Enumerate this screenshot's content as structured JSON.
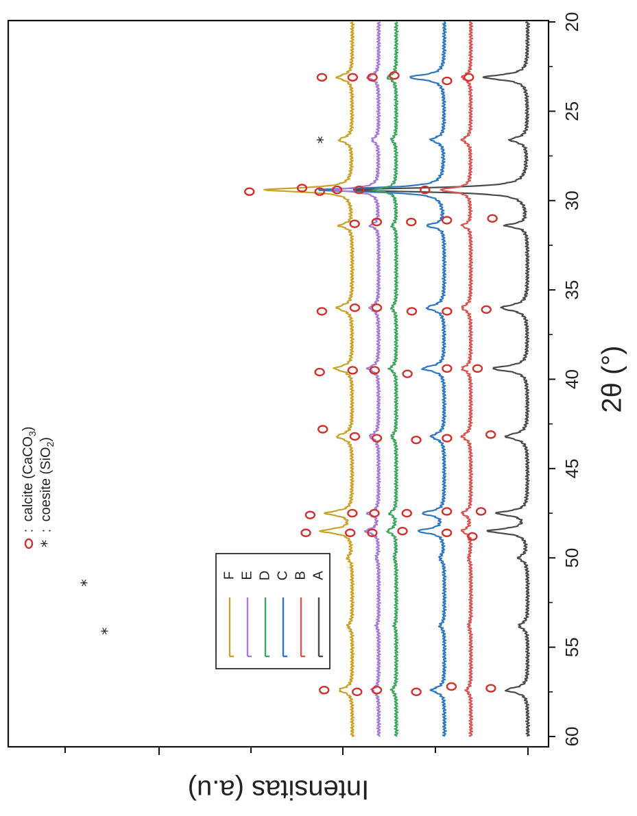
{
  "chart_data": {
    "type": "line",
    "title": "",
    "xlabel": "2θ (°)",
    "ylabel": "Intensitas (a.u)",
    "xlim": [
      20,
      60
    ],
    "x_ticks": [
      "20",
      "25",
      "30",
      "35",
      "40",
      "45",
      "50",
      "55",
      "60"
    ],
    "y_ticks_labeled": false,
    "orientation": "rotated 90° clockwise (x axis runs top-to-bottom on the right edge)",
    "grid": false,
    "legend": {
      "placement": "bottom-left",
      "entries": [
        "F",
        "E",
        "D",
        "C",
        "B",
        "A"
      ]
    },
    "phase_legend": [
      {
        "symbol": "o",
        "separator": ":",
        "label_prefix": "calcite (CaCO",
        "label_sub": "3",
        "label_suffix": ")"
      },
      {
        "symbol": "*",
        "separator": ":",
        "label_prefix": "coesite (SiO",
        "label_sub": "2",
        "label_suffix": ")"
      }
    ],
    "series": [
      {
        "name": "A",
        "color": "#4a4a4a",
        "offset": 0,
        "peak_heights": [
          10,
          4,
          40,
          5,
          6,
          8,
          5,
          7,
          9,
          2,
          2,
          5
        ]
      },
      {
        "name": "B",
        "color": "#d9534f",
        "offset": 13,
        "peak_heights": [
          2,
          2,
          7,
          2,
          2,
          2,
          2,
          2,
          2,
          0.5,
          0.5,
          1
        ]
      },
      {
        "name": "C",
        "color": "#2f76c2",
        "offset": 19,
        "peak_heights": [
          8,
          3,
          29,
          4,
          4,
          5,
          3,
          5,
          6,
          1,
          1,
          3
        ]
      },
      {
        "name": "D",
        "color": "#3ea55f",
        "offset": 30,
        "peak_heights": [
          2,
          1,
          5,
          1,
          1,
          1.5,
          1,
          1.5,
          2,
          0.4,
          0.4,
          1
        ]
      },
      {
        "name": "E",
        "color": "#a77ad6",
        "offset": 34,
        "peak_heights": [
          2.5,
          1.5,
          10,
          2,
          2,
          2.5,
          2,
          2.5,
          3,
          0.5,
          0.5,
          1.5
        ]
      },
      {
        "name": "F",
        "color": "#c9a227",
        "offset": 40,
        "peak_heights": [
          3.5,
          3,
          20,
          3,
          3.5,
          4,
          3.5,
          6,
          7,
          1,
          1,
          3
        ]
      }
    ],
    "calcite_peaks": [
      23.1,
      29.4,
      31.4,
      36.0,
      39.4,
      43.2,
      47.5,
      48.5,
      57.4
    ],
    "coesite_peaks": [
      26.6,
      50.0,
      53.8
    ],
    "annotations": [
      {
        "series": "F",
        "symbol": "o",
        "x": 23.1
      },
      {
        "series": "F",
        "symbol": "*",
        "x": 26.6
      },
      {
        "series": "F",
        "symbol": "o",
        "x": 29.5
      },
      {
        "series": "F",
        "symbol": "o",
        "x": 36.2
      },
      {
        "series": "F",
        "symbol": "o",
        "x": 39.6
      },
      {
        "series": "F",
        "symbol": "o",
        "x": 42.8
      },
      {
        "series": "F",
        "symbol": "o",
        "x": 47.6
      },
      {
        "series": "F",
        "symbol": "o",
        "x": 48.6
      },
      {
        "series": "F",
        "symbol": "o",
        "x": 57.4
      },
      {
        "series": "E",
        "symbol": "o",
        "x": 23.1
      },
      {
        "series": "E",
        "symbol": "o",
        "x": 29.5
      },
      {
        "series": "E",
        "symbol": "o",
        "x": 31.3
      },
      {
        "series": "E",
        "symbol": "o",
        "x": 36.0
      },
      {
        "series": "E",
        "symbol": "o",
        "x": 39.5
      },
      {
        "series": "E",
        "symbol": "o",
        "x": 43.2
      },
      {
        "series": "E",
        "symbol": "o",
        "x": 47.5
      },
      {
        "series": "E",
        "symbol": "o",
        "x": 48.6
      },
      {
        "series": "E",
        "symbol": "o",
        "x": 57.5
      },
      {
        "series": "D",
        "symbol": "o",
        "x": 23.1
      },
      {
        "series": "D",
        "symbol": "o",
        "x": 29.4
      },
      {
        "series": "D",
        "symbol": "o",
        "x": 31.2
      },
      {
        "series": "D",
        "symbol": "o",
        "x": 36.0
      },
      {
        "series": "D",
        "symbol": "o",
        "x": 39.5
      },
      {
        "series": "D",
        "symbol": "o",
        "x": 43.3
      },
      {
        "series": "D",
        "symbol": "o",
        "x": 47.5
      },
      {
        "series": "D",
        "symbol": "o",
        "x": 48.6
      },
      {
        "series": "D",
        "symbol": "o",
        "x": 57.4
      },
      {
        "series": "C",
        "symbol": "o",
        "x": 23.0
      },
      {
        "series": "C",
        "symbol": "o",
        "x": 29.3
      },
      {
        "series": "C",
        "symbol": "o",
        "x": 31.2
      },
      {
        "series": "C",
        "symbol": "o",
        "x": 36.2
      },
      {
        "series": "C",
        "symbol": "o",
        "x": 39.7
      },
      {
        "series": "C",
        "symbol": "o",
        "x": 43.4
      },
      {
        "series": "C",
        "symbol": "o",
        "x": 47.5
      },
      {
        "series": "C",
        "symbol": "o",
        "x": 48.5
      },
      {
        "series": "C",
        "symbol": "o",
        "x": 57.5
      },
      {
        "series": "B",
        "symbol": "o",
        "x": 23.3
      },
      {
        "series": "B",
        "symbol": "o",
        "x": 29.4
      },
      {
        "series": "B",
        "symbol": "o",
        "x": 31.1
      },
      {
        "series": "B",
        "symbol": "o",
        "x": 36.2
      },
      {
        "series": "B",
        "symbol": "o",
        "x": 39.4
      },
      {
        "series": "B",
        "symbol": "o",
        "x": 43.3
      },
      {
        "series": "B",
        "symbol": "o",
        "x": 47.4
      },
      {
        "series": "B",
        "symbol": "o",
        "x": 48.6
      },
      {
        "series": "B",
        "symbol": "o",
        "x": 57.2
      },
      {
        "series": "A",
        "symbol": "o",
        "x": 23.1
      },
      {
        "series": "A",
        "symbol": "o",
        "x": 29.4
      },
      {
        "series": "A",
        "symbol": "o",
        "x": 31.0
      },
      {
        "series": "A",
        "symbol": "o",
        "x": 36.1
      },
      {
        "series": "A",
        "symbol": "o",
        "x": 39.4
      },
      {
        "series": "A",
        "symbol": "o",
        "x": 43.1
      },
      {
        "series": "A",
        "symbol": "o",
        "x": 47.4
      },
      {
        "series": "A",
        "symbol": "o",
        "x": 48.8
      },
      {
        "series": "A",
        "symbol": "o",
        "x": 57.3
      }
    ],
    "coesite_label_markers": [
      51.4,
      54.1
    ]
  }
}
